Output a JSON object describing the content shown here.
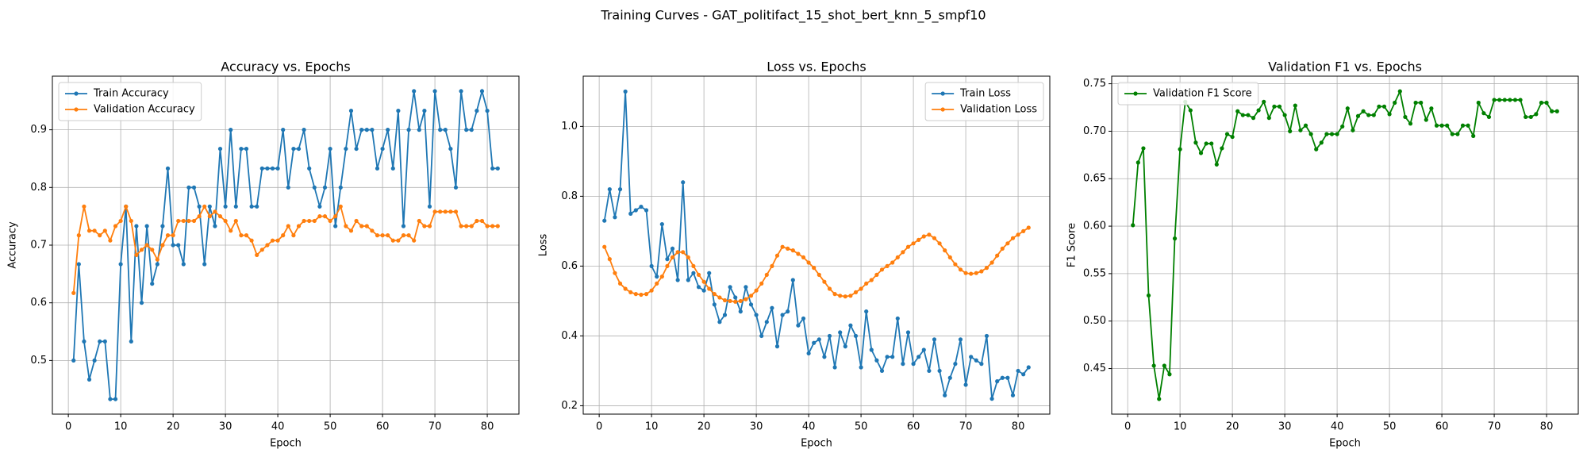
{
  "title": "Training Curves - GAT_politifact_15_shot_bert_knn_5_smpf10",
  "chart_data": [
    {
      "type": "line",
      "title": "Accuracy vs. Epochs",
      "xlabel": "Epoch",
      "ylabel": "Accuracy",
      "x": [
        1,
        2,
        3,
        4,
        5,
        6,
        7,
        8,
        9,
        10,
        11,
        12,
        13,
        14,
        15,
        16,
        17,
        18,
        19,
        20,
        21,
        22,
        23,
        24,
        25,
        26,
        27,
        28,
        29,
        30,
        31,
        32,
        33,
        34,
        35,
        36,
        37,
        38,
        39,
        40,
        41,
        42,
        43,
        44,
        45,
        46,
        47,
        48,
        49,
        50,
        51,
        52,
        53,
        54,
        55,
        56,
        57,
        58,
        59,
        60,
        61,
        62,
        63,
        64,
        65,
        66,
        67,
        68,
        69,
        70,
        71,
        72,
        73,
        74,
        75,
        76,
        77,
        78,
        79,
        80,
        81,
        82
      ],
      "series": [
        {
          "name": "Train Accuracy",
          "color": "#1f77b4",
          "values": [
            0.5,
            0.667,
            0.533,
            0.467,
            0.5,
            0.533,
            0.533,
            0.433,
            0.433,
            0.667,
            0.767,
            0.533,
            0.733,
            0.6,
            0.733,
            0.633,
            0.667,
            0.733,
            0.833,
            0.7,
            0.7,
            0.667,
            0.8,
            0.8,
            0.767,
            0.667,
            0.767,
            0.733,
            0.867,
            0.767,
            0.9,
            0.767,
            0.867,
            0.867,
            0.767,
            0.767,
            0.833,
            0.833,
            0.833,
            0.833,
            0.9,
            0.8,
            0.867,
            0.867,
            0.9,
            0.833,
            0.8,
            0.767,
            0.8,
            0.867,
            0.733,
            0.8,
            0.867,
            0.933,
            0.867,
            0.9,
            0.9,
            0.9,
            0.833,
            0.867,
            0.9,
            0.833,
            0.933,
            0.733,
            0.9,
            0.967,
            0.9,
            0.933,
            0.767,
            0.967,
            0.9,
            0.9,
            0.867,
            0.8,
            0.967,
            0.9,
            0.9,
            0.933,
            0.967,
            0.933,
            0.833,
            0.833
          ]
        },
        {
          "name": "Validation Accuracy",
          "color": "#ff7f0e",
          "values": [
            0.617,
            0.717,
            0.767,
            0.725,
            0.725,
            0.717,
            0.725,
            0.708,
            0.733,
            0.742,
            0.767,
            0.742,
            0.683,
            0.692,
            0.7,
            0.692,
            0.675,
            0.7,
            0.717,
            0.717,
            0.742,
            0.742,
            0.742,
            0.742,
            0.75,
            0.767,
            0.75,
            0.758,
            0.75,
            0.742,
            0.725,
            0.742,
            0.717,
            0.717,
            0.708,
            0.683,
            0.692,
            0.7,
            0.708,
            0.708,
            0.717,
            0.733,
            0.717,
            0.733,
            0.742,
            0.742,
            0.742,
            0.75,
            0.75,
            0.742,
            0.75,
            0.767,
            0.733,
            0.725,
            0.742,
            0.733,
            0.733,
            0.725,
            0.717,
            0.717,
            0.717,
            0.708,
            0.708,
            0.717,
            0.717,
            0.708,
            0.742,
            0.733,
            0.733,
            0.758,
            0.758,
            0.758,
            0.758,
            0.758,
            0.733,
            0.733,
            0.733,
            0.742,
            0.742,
            0.733,
            0.733,
            0.733
          ]
        }
      ],
      "xlim": [
        -3.05,
        86.05
      ],
      "xticks": [
        0,
        10,
        20,
        30,
        40,
        50,
        60,
        70,
        80
      ],
      "ylim": [
        0.407,
        0.993
      ],
      "yticks": [
        0.5,
        0.6,
        0.7,
        0.8,
        0.9
      ],
      "grid": true,
      "legend": "upper left"
    },
    {
      "type": "line",
      "title": "Loss vs. Epochs",
      "xlabel": "Epoch",
      "ylabel": "Loss",
      "x": [
        1,
        2,
        3,
        4,
        5,
        6,
        7,
        8,
        9,
        10,
        11,
        12,
        13,
        14,
        15,
        16,
        17,
        18,
        19,
        20,
        21,
        22,
        23,
        24,
        25,
        26,
        27,
        28,
        29,
        30,
        31,
        32,
        33,
        34,
        35,
        36,
        37,
        38,
        39,
        40,
        41,
        42,
        43,
        44,
        45,
        46,
        47,
        48,
        49,
        50,
        51,
        52,
        53,
        54,
        55,
        56,
        57,
        58,
        59,
        60,
        61,
        62,
        63,
        64,
        65,
        66,
        67,
        68,
        69,
        70,
        71,
        72,
        73,
        74,
        75,
        76,
        77,
        78,
        79,
        80,
        81,
        82
      ],
      "series": [
        {
          "name": "Train Loss",
          "color": "#1f77b4",
          "values": [
            0.73,
            0.82,
            0.74,
            0.82,
            1.1,
            0.75,
            0.76,
            0.77,
            0.76,
            0.6,
            0.57,
            0.72,
            0.62,
            0.65,
            0.56,
            0.84,
            0.56,
            0.58,
            0.54,
            0.53,
            0.58,
            0.49,
            0.44,
            0.46,
            0.54,
            0.51,
            0.47,
            0.54,
            0.49,
            0.46,
            0.4,
            0.44,
            0.48,
            0.37,
            0.46,
            0.47,
            0.56,
            0.43,
            0.45,
            0.35,
            0.38,
            0.39,
            0.34,
            0.4,
            0.31,
            0.41,
            0.37,
            0.43,
            0.4,
            0.31,
            0.47,
            0.36,
            0.33,
            0.3,
            0.34,
            0.34,
            0.45,
            0.32,
            0.41,
            0.32,
            0.34,
            0.36,
            0.3,
            0.39,
            0.3,
            0.23,
            0.28,
            0.32,
            0.39,
            0.26,
            0.34,
            0.33,
            0.32,
            0.4,
            0.22,
            0.27,
            0.28,
            0.28,
            0.23,
            0.3,
            0.29,
            0.31
          ]
        },
        {
          "name": "Validation Loss",
          "color": "#ff7f0e",
          "values": [
            0.655,
            0.62,
            0.58,
            0.55,
            0.535,
            0.525,
            0.52,
            0.518,
            0.52,
            0.53,
            0.55,
            0.57,
            0.6,
            0.625,
            0.64,
            0.64,
            0.625,
            0.6,
            0.575,
            0.555,
            0.535,
            0.52,
            0.51,
            0.502,
            0.5,
            0.498,
            0.5,
            0.505,
            0.515,
            0.53,
            0.55,
            0.575,
            0.6,
            0.63,
            0.655,
            0.65,
            0.645,
            0.635,
            0.625,
            0.61,
            0.595,
            0.575,
            0.555,
            0.535,
            0.52,
            0.515,
            0.513,
            0.515,
            0.525,
            0.535,
            0.55,
            0.56,
            0.575,
            0.59,
            0.6,
            0.61,
            0.625,
            0.64,
            0.655,
            0.665,
            0.675,
            0.685,
            0.69,
            0.68,
            0.665,
            0.645,
            0.625,
            0.605,
            0.59,
            0.58,
            0.578,
            0.58,
            0.585,
            0.595,
            0.61,
            0.63,
            0.65,
            0.665,
            0.68,
            0.69,
            0.7,
            0.71
          ]
        }
      ],
      "xlim": [
        -3.05,
        86.05
      ],
      "xticks": [
        0,
        10,
        20,
        30,
        40,
        50,
        60,
        70,
        80
      ],
      "ylim": [
        0.176,
        1.144
      ],
      "yticks": [
        0.2,
        0.4,
        0.6,
        0.8,
        {
          "value": 1,
          "label": "1.0"
        }
      ],
      "grid": true,
      "legend": "upper right"
    },
    {
      "type": "line",
      "title": "Validation F1 vs. Epochs",
      "xlabel": "Epoch",
      "ylabel": "F1 Score",
      "x": [
        1,
        2,
        3,
        4,
        5,
        6,
        7,
        8,
        9,
        10,
        11,
        12,
        13,
        14,
        15,
        16,
        17,
        18,
        19,
        20,
        21,
        22,
        23,
        24,
        25,
        26,
        27,
        28,
        29,
        30,
        31,
        32,
        33,
        34,
        35,
        36,
        37,
        38,
        39,
        40,
        41,
        42,
        43,
        44,
        45,
        46,
        47,
        48,
        49,
        50,
        51,
        52,
        53,
        54,
        55,
        56,
        57,
        58,
        59,
        60,
        61,
        62,
        63,
        64,
        65,
        66,
        67,
        68,
        69,
        70,
        71,
        72,
        73,
        74,
        75,
        76,
        77,
        78,
        79,
        80,
        81,
        82
      ],
      "series": [
        {
          "name": "Validation F1 Score",
          "color": "#008000",
          "values": [
            0.601,
            0.667,
            0.682,
            0.527,
            0.453,
            0.418,
            0.453,
            0.444,
            0.587,
            0.681,
            0.731,
            0.722,
            0.688,
            0.677,
            0.687,
            0.687,
            0.665,
            0.682,
            0.697,
            0.694,
            0.721,
            0.717,
            0.717,
            0.714,
            0.722,
            0.731,
            0.714,
            0.726,
            0.726,
            0.717,
            0.7,
            0.727,
            0.701,
            0.706,
            0.697,
            0.681,
            0.688,
            0.697,
            0.697,
            0.697,
            0.705,
            0.724,
            0.701,
            0.716,
            0.721,
            0.717,
            0.717,
            0.726,
            0.726,
            0.718,
            0.73,
            0.742,
            0.715,
            0.708,
            0.73,
            0.73,
            0.712,
            0.724,
            0.706,
            0.706,
            0.706,
            0.697,
            0.697,
            0.706,
            0.706,
            0.695,
            0.73,
            0.719,
            0.715,
            0.733,
            0.733,
            0.733,
            0.733,
            0.733,
            0.733,
            0.715,
            0.715,
            0.718,
            0.73,
            0.73,
            0.721,
            0.721
          ]
        }
      ],
      "xlim": [
        -3.05,
        86.05
      ],
      "xticks": [
        0,
        10,
        20,
        30,
        40,
        50,
        60,
        70,
        80
      ],
      "ylim": [
        0.402,
        0.758
      ],
      "yticks": [
        {
          "value": 0.45,
          "label": "0.45"
        },
        {
          "value": 0.5,
          "label": "0.50"
        },
        {
          "value": 0.55,
          "label": "0.55"
        },
        {
          "value": 0.6,
          "label": "0.60"
        },
        {
          "value": 0.65,
          "label": "0.65"
        },
        {
          "value": 0.7,
          "label": "0.70"
        },
        {
          "value": 0.75,
          "label": "0.75"
        }
      ],
      "grid": true,
      "legend": "upper left"
    }
  ]
}
